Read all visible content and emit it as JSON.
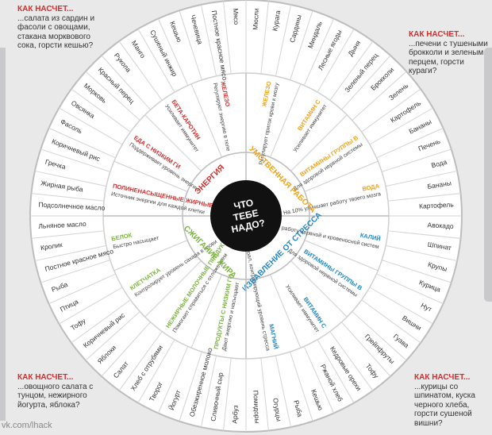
{
  "center": {
    "line1": "ЧТО",
    "line2": "ТЕБЕ",
    "line3": "НАДО?"
  },
  "corners": {
    "top_left": {
      "head": "КАК НАСЧЕТ...",
      "text": "...салата из сардин и фасоли с овощами, стакана морквового сока, горсти кешью?"
    },
    "top_right": {
      "head": "КАК НАСЧЕТ...",
      "text": "...печени с тушеными брокколи и зеленым перцем, горсти кураги?"
    },
    "bottom_left": {
      "head": "КАК НАСЧЕТ...",
      "text": "...овощного салата с тунцом, нежирного йогурта, яблока?"
    },
    "bottom_right": {
      "head": "КАК НАСЧЕТ...",
      "text": "...курицы со шпинатом, куска черного хлеба, горсти сушеной вишни?"
    }
  },
  "watermark": "vk.com/lhack",
  "colors": {
    "red": "#d32f2f",
    "orange": "#f3a21b",
    "blue": "#1e88c8",
    "green": "#7cb342",
    "navy": "#29457d"
  },
  "sections": [
    {
      "label": "УМСТВЕННАЯ РАБОТА",
      "color": "#f3a21b"
    },
    {
      "label": "ИЗБАВЛЕНИЕ ОТ СТРЕССА",
      "color": "#1e88c8"
    },
    {
      "label": "СЖИГАНИЕ ЖИРА",
      "color": "#7cb342"
    },
    {
      "label": "ЭНЕРГИЯ",
      "color": "#d32f2f"
    }
  ],
  "nutrients": [
    {
      "name": "ЖЕЛЕЗО",
      "desc": "Регулирует приток крови к мозгу",
      "color": "#f3a21b"
    },
    {
      "name": "ВИТАМИН С",
      "desc": "Усиливает иммунитет",
      "color": "#f3a21b"
    },
    {
      "name": "ВИТАМИНЫ ГРУППЫ В",
      "desc": "Для здоровой нервной системы",
      "color": "#f3a21b"
    },
    {
      "name": "ВОДА",
      "desc": "На 10% улучшает работу твоего мозга",
      "color": "#f3a21b"
    },
    {
      "name": "КАЛИЙ",
      "desc": "Улучшает работу нервной и кровеносной систем",
      "color": "#1e88c8"
    },
    {
      "name": "ВИТАМИНЫ ГРУППЫ В",
      "desc": "Для здоровой нервной системы",
      "color": "#1e88c8"
    },
    {
      "name": "ВИТАМИН С",
      "desc": "Усиливает иммунитет",
      "color": "#1e88c8"
    },
    {
      "name": "МАГНИЙ",
      "desc": "Минерал, контролирующий уровень стресса",
      "color": "#1e88c8"
    },
    {
      "name": "ПРОДУКТЫ С НИЗКИМ ГИ",
      "desc": "Дают энергию и насыщают",
      "color": "#7cb342"
    },
    {
      "name": "НЕЖИРНЫЕ МОЛОЧНЫЕ ПРОДУКТЫ",
      "desc": "Помогают справиться с отложением",
      "color": "#7cb342"
    },
    {
      "name": "КЛЕТЧАТКА",
      "desc": "Контролирует уровень сахара в крови",
      "color": "#7cb342"
    },
    {
      "name": "БЕЛОК",
      "desc": "Быстро насыщает",
      "color": "#7cb342"
    },
    {
      "name": "ПОЛИНЕНАСЫЩЕННЫЕ ЖИРНЫЕ КИСЛОТЫ",
      "desc": "Источник энергии для каждой клетки",
      "color": "#d32f2f"
    },
    {
      "name": "ЕДА С НИЗКИМ ГИ",
      "desc": "Поддерживает уровень энергии",
      "color": "#d32f2f"
    },
    {
      "name": "БЕТА-КАРОТИН",
      "desc": "Усиливает иммунитет",
      "color": "#d32f2f"
    },
    {
      "name": "ЖЕЛЕЗО",
      "desc": "Регулирует энергию в теле",
      "color": "#d32f2f"
    }
  ],
  "foods": [
    "Мюсли",
    "Курага",
    "Сардины",
    "Миндаль",
    "Лесные ягоды",
    "Дыня",
    "Зеленый перец",
    "Брокколи",
    "Зелень",
    "Картофель",
    "Бананы",
    "Печень",
    "Вода",
    "Бананы",
    "Картофель",
    "Авокадо",
    "Шпинат",
    "Крупы",
    "Курица",
    "Нут",
    "Вишни",
    "Гуава",
    "Грейпфруты",
    "Тофу",
    "Кедровые орехи",
    "Ржаной хлеб",
    "Кешью",
    "Рыба",
    "Огурцы",
    "Помидоры",
    "Арбуз",
    "Сливочный сыр",
    "Обезжиренное молоко",
    "Йогурт",
    "Творог",
    "Хлеб с отрубями",
    "Салат",
    "Яблоки",
    "Коричневый рис",
    "Тофу",
    "Птица",
    "Рыба",
    "Постное красное мясо",
    "Кролик",
    "Льняное масло",
    "Подсолнечное масло",
    "Жирная рыба",
    "Гречка",
    "Коричневый рис",
    "Фасоль",
    "Овсянка",
    "Морковь",
    "Красный перец",
    "Рукола",
    "Манго",
    "Сушеный инжир",
    "Кешью",
    "Чечевица",
    "Постное красное мясо",
    "Мясо"
  ]
}
